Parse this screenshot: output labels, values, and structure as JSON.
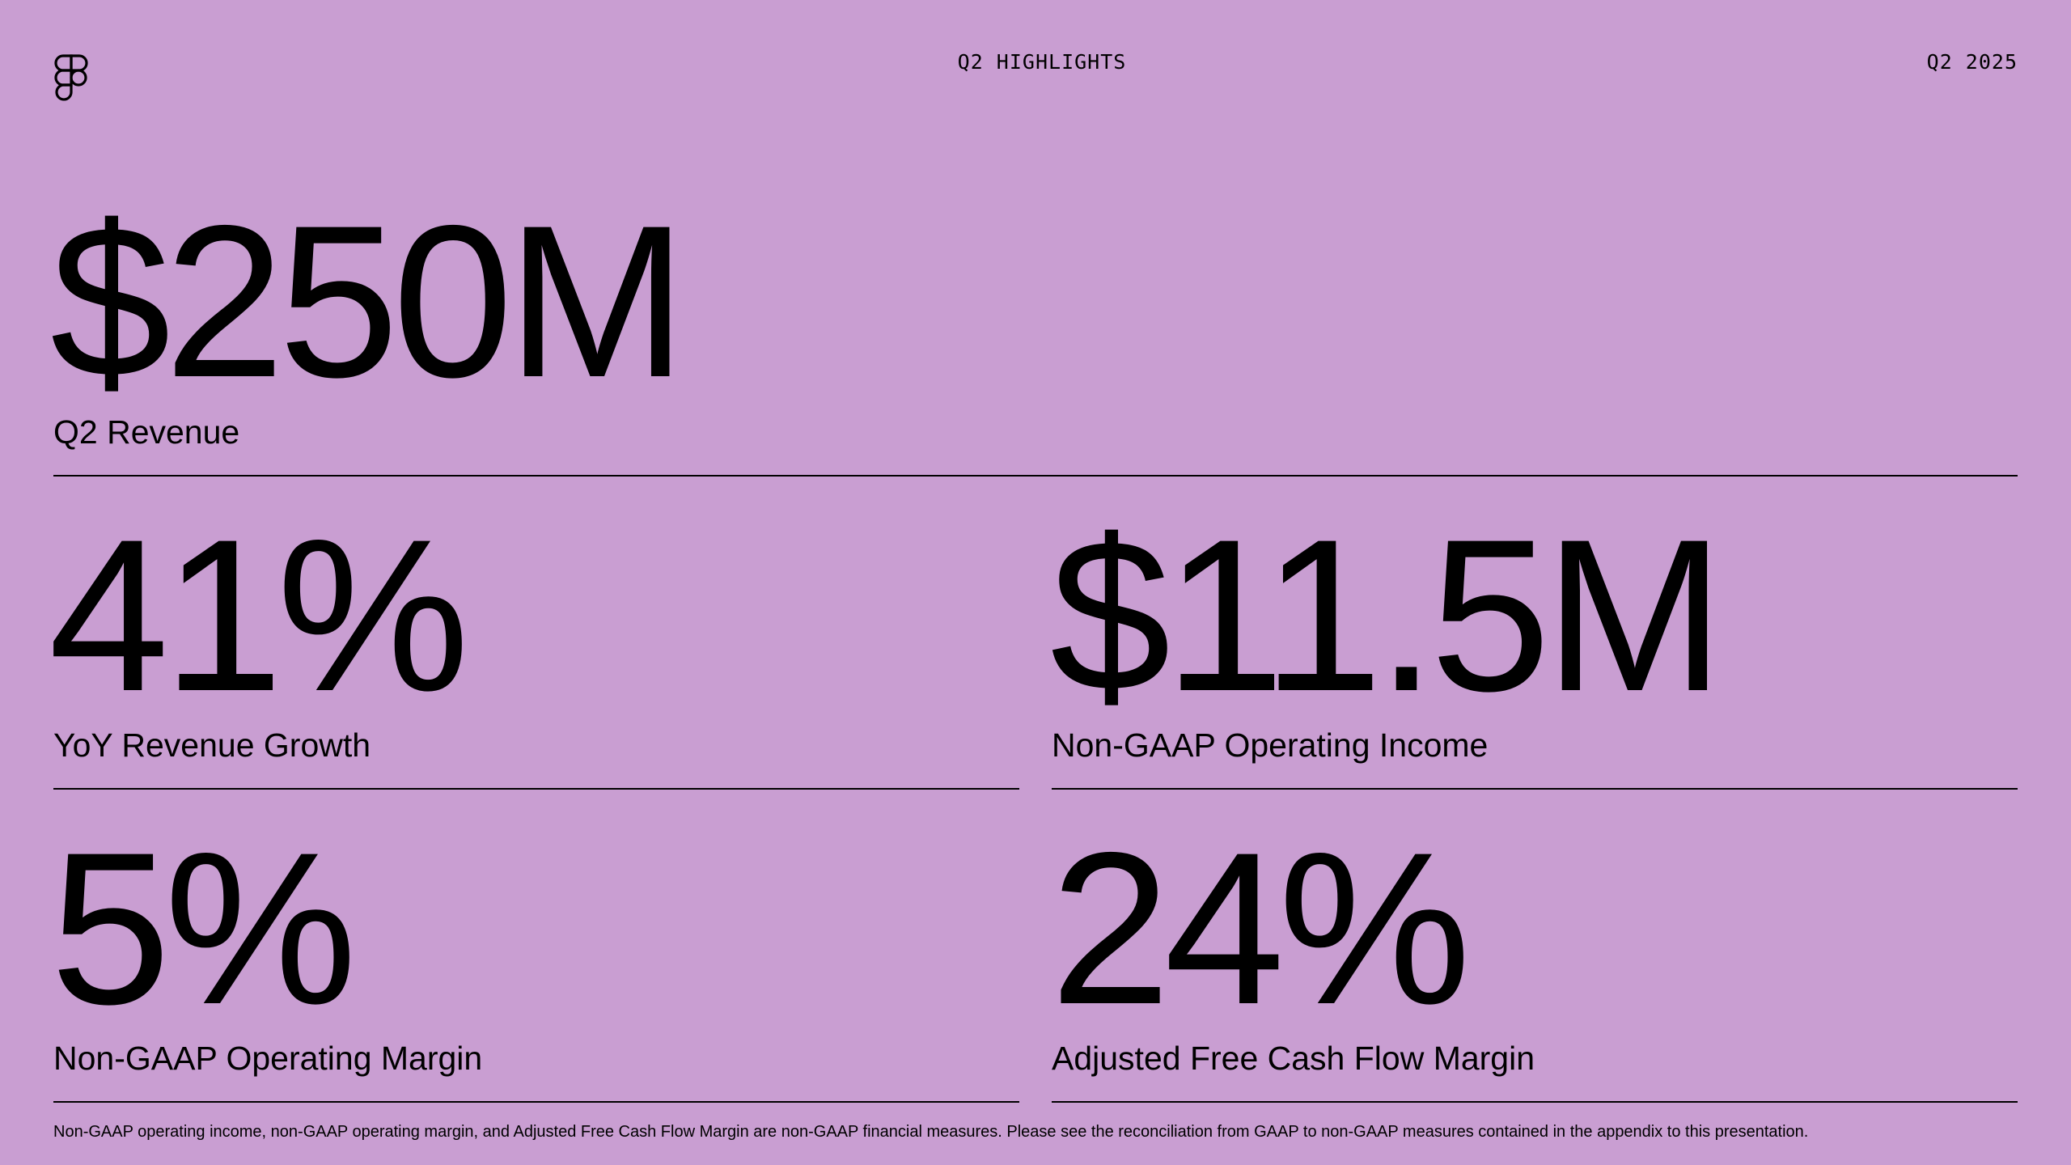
{
  "theme": {
    "background": "#C99ED2",
    "text": "#000000"
  },
  "header": {
    "logo_icon": "figma-logo-icon",
    "title": "Q2 HIGHLIGHTS",
    "period": "Q2 2025"
  },
  "metrics": {
    "revenue": {
      "value": "$250M",
      "label": "Q2 Revenue"
    },
    "growth": {
      "value": "41%",
      "label": "YoY Revenue Growth"
    },
    "operating_income": {
      "value": "$11.5M",
      "label": "Non-GAAP Operating Income"
    },
    "operating_margin": {
      "value": "5%",
      "label": "Non-GAAP Operating Margin"
    },
    "fcf_margin": {
      "value": "24%",
      "label": "Adjusted Free Cash Flow Margin"
    }
  },
  "footnote": "Non-GAAP operating income, non-GAAP operating margin, and Adjusted Free Cash Flow Margin are non-GAAP financial measures. Please see the reconciliation from GAAP to non-GAAP measures contained in the appendix to this presentation."
}
